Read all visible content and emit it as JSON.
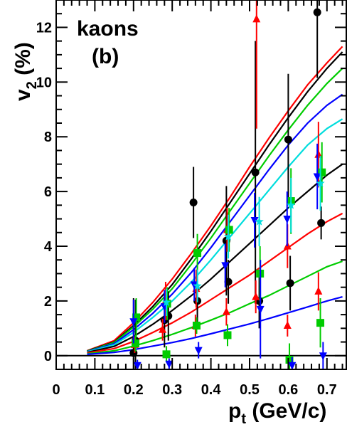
{
  "chart_data": {
    "type": "scatter",
    "title": "",
    "annotations": [
      "kaons",
      "(b)"
    ],
    "ylabel": {
      "main": "v",
      "sub": "2",
      "unit": " (%)"
    },
    "xlabel": {
      "main": "p",
      "sub": "t",
      "unit": " (GeV/c)"
    },
    "xlim": [
      0.0,
      0.75
    ],
    "ylim": [
      -0.5,
      13.0
    ],
    "x_major_ticks": [
      0,
      0.1,
      0.2,
      0.3,
      0.4,
      0.5,
      0.6,
      0.7
    ],
    "x_tick_labels": [
      "0",
      "0.1",
      "0.2",
      "0.3",
      "0.4",
      "0.5",
      "0.6",
      "0.7"
    ],
    "y_major_ticks": [
      0,
      2,
      4,
      6,
      8,
      10,
      12
    ],
    "y_tick_labels": [
      "0",
      "2",
      "4",
      "6",
      "8",
      "10",
      "12"
    ],
    "x_minor_step": 0.02,
    "y_minor_step": 0.5,
    "reference_line": 0,
    "colors": {
      "black": "#000000",
      "red": "#ff0000",
      "green": "#00cc00",
      "blue": "#0000ff",
      "cyan": "#00dddd"
    },
    "curves": [
      {
        "color": "red",
        "x": [
          0.08,
          0.15,
          0.2,
          0.25,
          0.3,
          0.35,
          0.4,
          0.45,
          0.5,
          0.55,
          0.6,
          0.65,
          0.7,
          0.74
        ],
        "y": [
          0.18,
          0.55,
          1.2,
          1.95,
          2.8,
          3.75,
          4.75,
          5.8,
          6.9,
          7.95,
          8.95,
          9.9,
          10.7,
          11.3
        ]
      },
      {
        "color": "black",
        "x": [
          0.08,
          0.15,
          0.2,
          0.25,
          0.3,
          0.35,
          0.4,
          0.45,
          0.5,
          0.55,
          0.6,
          0.65,
          0.7,
          0.74
        ],
        "y": [
          0.17,
          0.5,
          1.1,
          1.8,
          2.6,
          3.55,
          4.55,
          5.6,
          6.65,
          7.7,
          8.7,
          9.65,
          10.5,
          11.1
        ]
      },
      {
        "color": "green",
        "x": [
          0.08,
          0.15,
          0.2,
          0.25,
          0.3,
          0.35,
          0.4,
          0.45,
          0.5,
          0.55,
          0.6,
          0.65,
          0.7,
          0.74
        ],
        "y": [
          0.16,
          0.48,
          1.05,
          1.7,
          2.45,
          3.35,
          4.3,
          5.3,
          6.3,
          7.3,
          8.25,
          9.15,
          9.95,
          10.5
        ]
      },
      {
        "color": "blue",
        "x": [
          0.08,
          0.15,
          0.2,
          0.25,
          0.3,
          0.35,
          0.4,
          0.45,
          0.5,
          0.55,
          0.6,
          0.65,
          0.7,
          0.74
        ],
        "y": [
          0.15,
          0.44,
          0.95,
          1.55,
          2.25,
          3.05,
          3.95,
          4.9,
          5.85,
          6.8,
          7.7,
          8.5,
          9.15,
          9.55
        ]
      },
      {
        "color": "cyan",
        "x": [
          0.08,
          0.15,
          0.2,
          0.25,
          0.3,
          0.35,
          0.4,
          0.45,
          0.5,
          0.55,
          0.6,
          0.65,
          0.7,
          0.74
        ],
        "y": [
          0.14,
          0.4,
          0.85,
          1.4,
          2.0,
          2.7,
          3.5,
          4.35,
          5.2,
          6.05,
          6.9,
          7.7,
          8.3,
          8.65
        ]
      },
      {
        "color": "black",
        "x": [
          0.08,
          0.15,
          0.2,
          0.25,
          0.3,
          0.35,
          0.4,
          0.45,
          0.5,
          0.55,
          0.6,
          0.65,
          0.7,
          0.74
        ],
        "y": [
          0.12,
          0.34,
          0.7,
          1.15,
          1.65,
          2.2,
          2.8,
          3.45,
          4.1,
          4.75,
          5.4,
          6.0,
          6.6,
          7.0
        ]
      },
      {
        "color": "red",
        "x": [
          0.08,
          0.15,
          0.2,
          0.25,
          0.3,
          0.35,
          0.4,
          0.45,
          0.5,
          0.55,
          0.6,
          0.65,
          0.7,
          0.74
        ],
        "y": [
          0.1,
          0.26,
          0.52,
          0.85,
          1.2,
          1.6,
          2.05,
          2.5,
          2.95,
          3.45,
          3.95,
          4.45,
          4.9,
          5.2
        ]
      },
      {
        "color": "green",
        "x": [
          0.08,
          0.15,
          0.2,
          0.25,
          0.3,
          0.35,
          0.4,
          0.45,
          0.5,
          0.55,
          0.6,
          0.65,
          0.7,
          0.74
        ],
        "y": [
          0.07,
          0.18,
          0.35,
          0.55,
          0.78,
          1.03,
          1.3,
          1.58,
          1.9,
          2.2,
          2.55,
          2.9,
          3.25,
          3.45
        ]
      },
      {
        "color": "blue",
        "x": [
          0.08,
          0.15,
          0.2,
          0.25,
          0.3,
          0.35,
          0.4,
          0.45,
          0.5,
          0.55,
          0.6,
          0.65,
          0.7,
          0.74
        ],
        "y": [
          0.05,
          0.12,
          0.22,
          0.35,
          0.48,
          0.63,
          0.8,
          0.98,
          1.16,
          1.36,
          1.57,
          1.78,
          2.0,
          2.15
        ]
      }
    ],
    "points": [
      {
        "color": "black",
        "marker": "circle",
        "x": 0.2,
        "y": 0.1,
        "err": 2.0
      },
      {
        "color": "black",
        "marker": "circle",
        "x": 0.205,
        "y": 0.55,
        "err": 1.5
      },
      {
        "color": "black",
        "marker": "circle",
        "x": 0.28,
        "y": 1.3,
        "err": 1.0
      },
      {
        "color": "black",
        "marker": "circle",
        "x": 0.29,
        "y": 1.45,
        "err": 0.9
      },
      {
        "color": "black",
        "marker": "circle",
        "x": 0.355,
        "y": 5.6,
        "err": 1.3
      },
      {
        "color": "black",
        "marker": "circle",
        "x": 0.365,
        "y": 2.0,
        "err": 0.8
      },
      {
        "color": "black",
        "marker": "circle",
        "x": 0.44,
        "y": 4.2,
        "err": 2.0
      },
      {
        "color": "black",
        "marker": "circle",
        "x": 0.445,
        "y": 2.7,
        "err": 0.8
      },
      {
        "color": "black",
        "marker": "circle",
        "x": 0.515,
        "y": 6.7,
        "err": 4.8
      },
      {
        "color": "black",
        "marker": "circle",
        "x": 0.525,
        "y": 2.0,
        "err": 1.0
      },
      {
        "color": "black",
        "marker": "circle",
        "x": 0.6,
        "y": 7.9,
        "err": 2.4
      },
      {
        "color": "black",
        "marker": "circle",
        "x": 0.605,
        "y": 2.65,
        "err": 1.0
      },
      {
        "color": "black",
        "marker": "circle",
        "x": 0.675,
        "y": 12.55,
        "err": 2.4
      },
      {
        "color": "black",
        "marker": "circle",
        "x": 0.685,
        "y": 4.85,
        "err": 0.6
      },
      {
        "color": "red",
        "marker": "triangle-up",
        "x": 0.203,
        "y": 0.4,
        "err": 0.3
      },
      {
        "color": "red",
        "marker": "triangle-up",
        "x": 0.275,
        "y": 0.95,
        "err": 0.4
      },
      {
        "color": "red",
        "marker": "triangle-up",
        "x": 0.283,
        "y": 2.0,
        "err": 0.7
      },
      {
        "color": "red",
        "marker": "triangle-up",
        "x": 0.36,
        "y": 1.1,
        "err": 0.4
      },
      {
        "color": "red",
        "marker": "triangle-up",
        "x": 0.362,
        "y": 2.45,
        "err": 0.7
      },
      {
        "color": "red",
        "marker": "triangle-up",
        "x": 0.44,
        "y": 1.6,
        "err": 0.5
      },
      {
        "color": "red",
        "marker": "triangle-up",
        "x": 0.442,
        "y": 4.6,
        "err": 0.8
      },
      {
        "color": "red",
        "marker": "triangle-up",
        "x": 0.518,
        "y": 12.3,
        "err": 4.0
      },
      {
        "color": "red",
        "marker": "triangle-up",
        "x": 0.516,
        "y": 2.15,
        "err": 0.6
      },
      {
        "color": "red",
        "marker": "triangle-up",
        "x": 0.598,
        "y": 4.0,
        "err": 0.8
      },
      {
        "color": "red",
        "marker": "triangle-up",
        "x": 0.598,
        "y": 1.1,
        "err": 0.4
      },
      {
        "color": "red",
        "marker": "triangle-up",
        "x": 0.678,
        "y": 7.35,
        "err": 1.2
      },
      {
        "color": "red",
        "marker": "triangle-up",
        "x": 0.678,
        "y": 2.35,
        "err": 0.7
      },
      {
        "color": "green",
        "marker": "square",
        "x": 0.207,
        "y": 1.4,
        "err": 0.7
      },
      {
        "color": "green",
        "marker": "square",
        "x": 0.205,
        "y": 0.45,
        "err": 0.3
      },
      {
        "color": "green",
        "marker": "square",
        "x": 0.287,
        "y": 1.9,
        "err": 0.6
      },
      {
        "color": "green",
        "marker": "square",
        "x": 0.285,
        "y": 0.05,
        "err": 0.3
      },
      {
        "color": "green",
        "marker": "square",
        "x": 0.365,
        "y": 3.75,
        "err": 0.7
      },
      {
        "color": "green",
        "marker": "square",
        "x": 0.363,
        "y": 1.1,
        "err": 0.3
      },
      {
        "color": "green",
        "marker": "square",
        "x": 0.447,
        "y": 4.6,
        "err": 0.8
      },
      {
        "color": "green",
        "marker": "square",
        "x": 0.443,
        "y": 0.75,
        "err": 0.4
      },
      {
        "color": "green",
        "marker": "square",
        "x": 0.527,
        "y": 3.0,
        "err": 1.0
      },
      {
        "color": "green",
        "marker": "square",
        "x": 0.607,
        "y": 5.65,
        "err": 1.2
      },
      {
        "color": "green",
        "marker": "square",
        "x": 0.603,
        "y": -0.15,
        "err": 0.6
      },
      {
        "color": "green",
        "marker": "square",
        "x": 0.687,
        "y": 6.7,
        "err": 1.1
      },
      {
        "color": "green",
        "marker": "square",
        "x": 0.683,
        "y": 1.2,
        "err": 0.9
      },
      {
        "color": "blue",
        "marker": "triangle-down",
        "x": 0.2,
        "y": 1.25,
        "err": 0.8
      },
      {
        "color": "blue",
        "marker": "triangle-down",
        "x": 0.21,
        "y": -0.35,
        "err": 0.2
      },
      {
        "color": "blue",
        "marker": "triangle-down",
        "x": 0.28,
        "y": 1.8,
        "err": 0.6
      },
      {
        "color": "blue",
        "marker": "triangle-down",
        "x": 0.292,
        "y": -0.3,
        "err": 0.2
      },
      {
        "color": "blue",
        "marker": "triangle-down",
        "x": 0.357,
        "y": 2.6,
        "err": 0.6
      },
      {
        "color": "blue",
        "marker": "triangle-down",
        "x": 0.368,
        "y": 0.2,
        "err": 0.3
      },
      {
        "color": "blue",
        "marker": "triangle-down",
        "x": 0.437,
        "y": 3.3,
        "err": 0.8
      },
      {
        "color": "blue",
        "marker": "triangle-down",
        "x": 0.513,
        "y": 4.95,
        "err": 1.0
      },
      {
        "color": "blue",
        "marker": "triangle-down",
        "x": 0.528,
        "y": 1.7,
        "err": 1.8
      },
      {
        "color": "blue",
        "marker": "triangle-down",
        "x": 0.597,
        "y": 5.0,
        "err": 1.0
      },
      {
        "color": "blue",
        "marker": "triangle-down",
        "x": 0.61,
        "y": -0.35,
        "err": 0.3
      },
      {
        "color": "blue",
        "marker": "triangle-down",
        "x": 0.675,
        "y": 6.55,
        "err": 1.2
      },
      {
        "color": "blue",
        "marker": "triangle-down",
        "x": 0.69,
        "y": 0.0,
        "err": 0.5
      },
      {
        "color": "cyan",
        "marker": "star",
        "x": 0.285,
        "y": 1.95,
        "err": 0.5
      },
      {
        "color": "cyan",
        "marker": "star",
        "x": 0.365,
        "y": 2.55,
        "err": 0.6
      },
      {
        "color": "cyan",
        "marker": "star",
        "x": 0.445,
        "y": 4.35,
        "err": 0.8
      },
      {
        "color": "cyan",
        "marker": "star",
        "x": 0.525,
        "y": 4.9,
        "err": 0.9
      },
      {
        "color": "cyan",
        "marker": "star",
        "x": 0.607,
        "y": 5.5,
        "err": 1.0
      },
      {
        "color": "cyan",
        "marker": "star",
        "x": 0.683,
        "y": 6.3,
        "err": 1.0
      }
    ]
  }
}
